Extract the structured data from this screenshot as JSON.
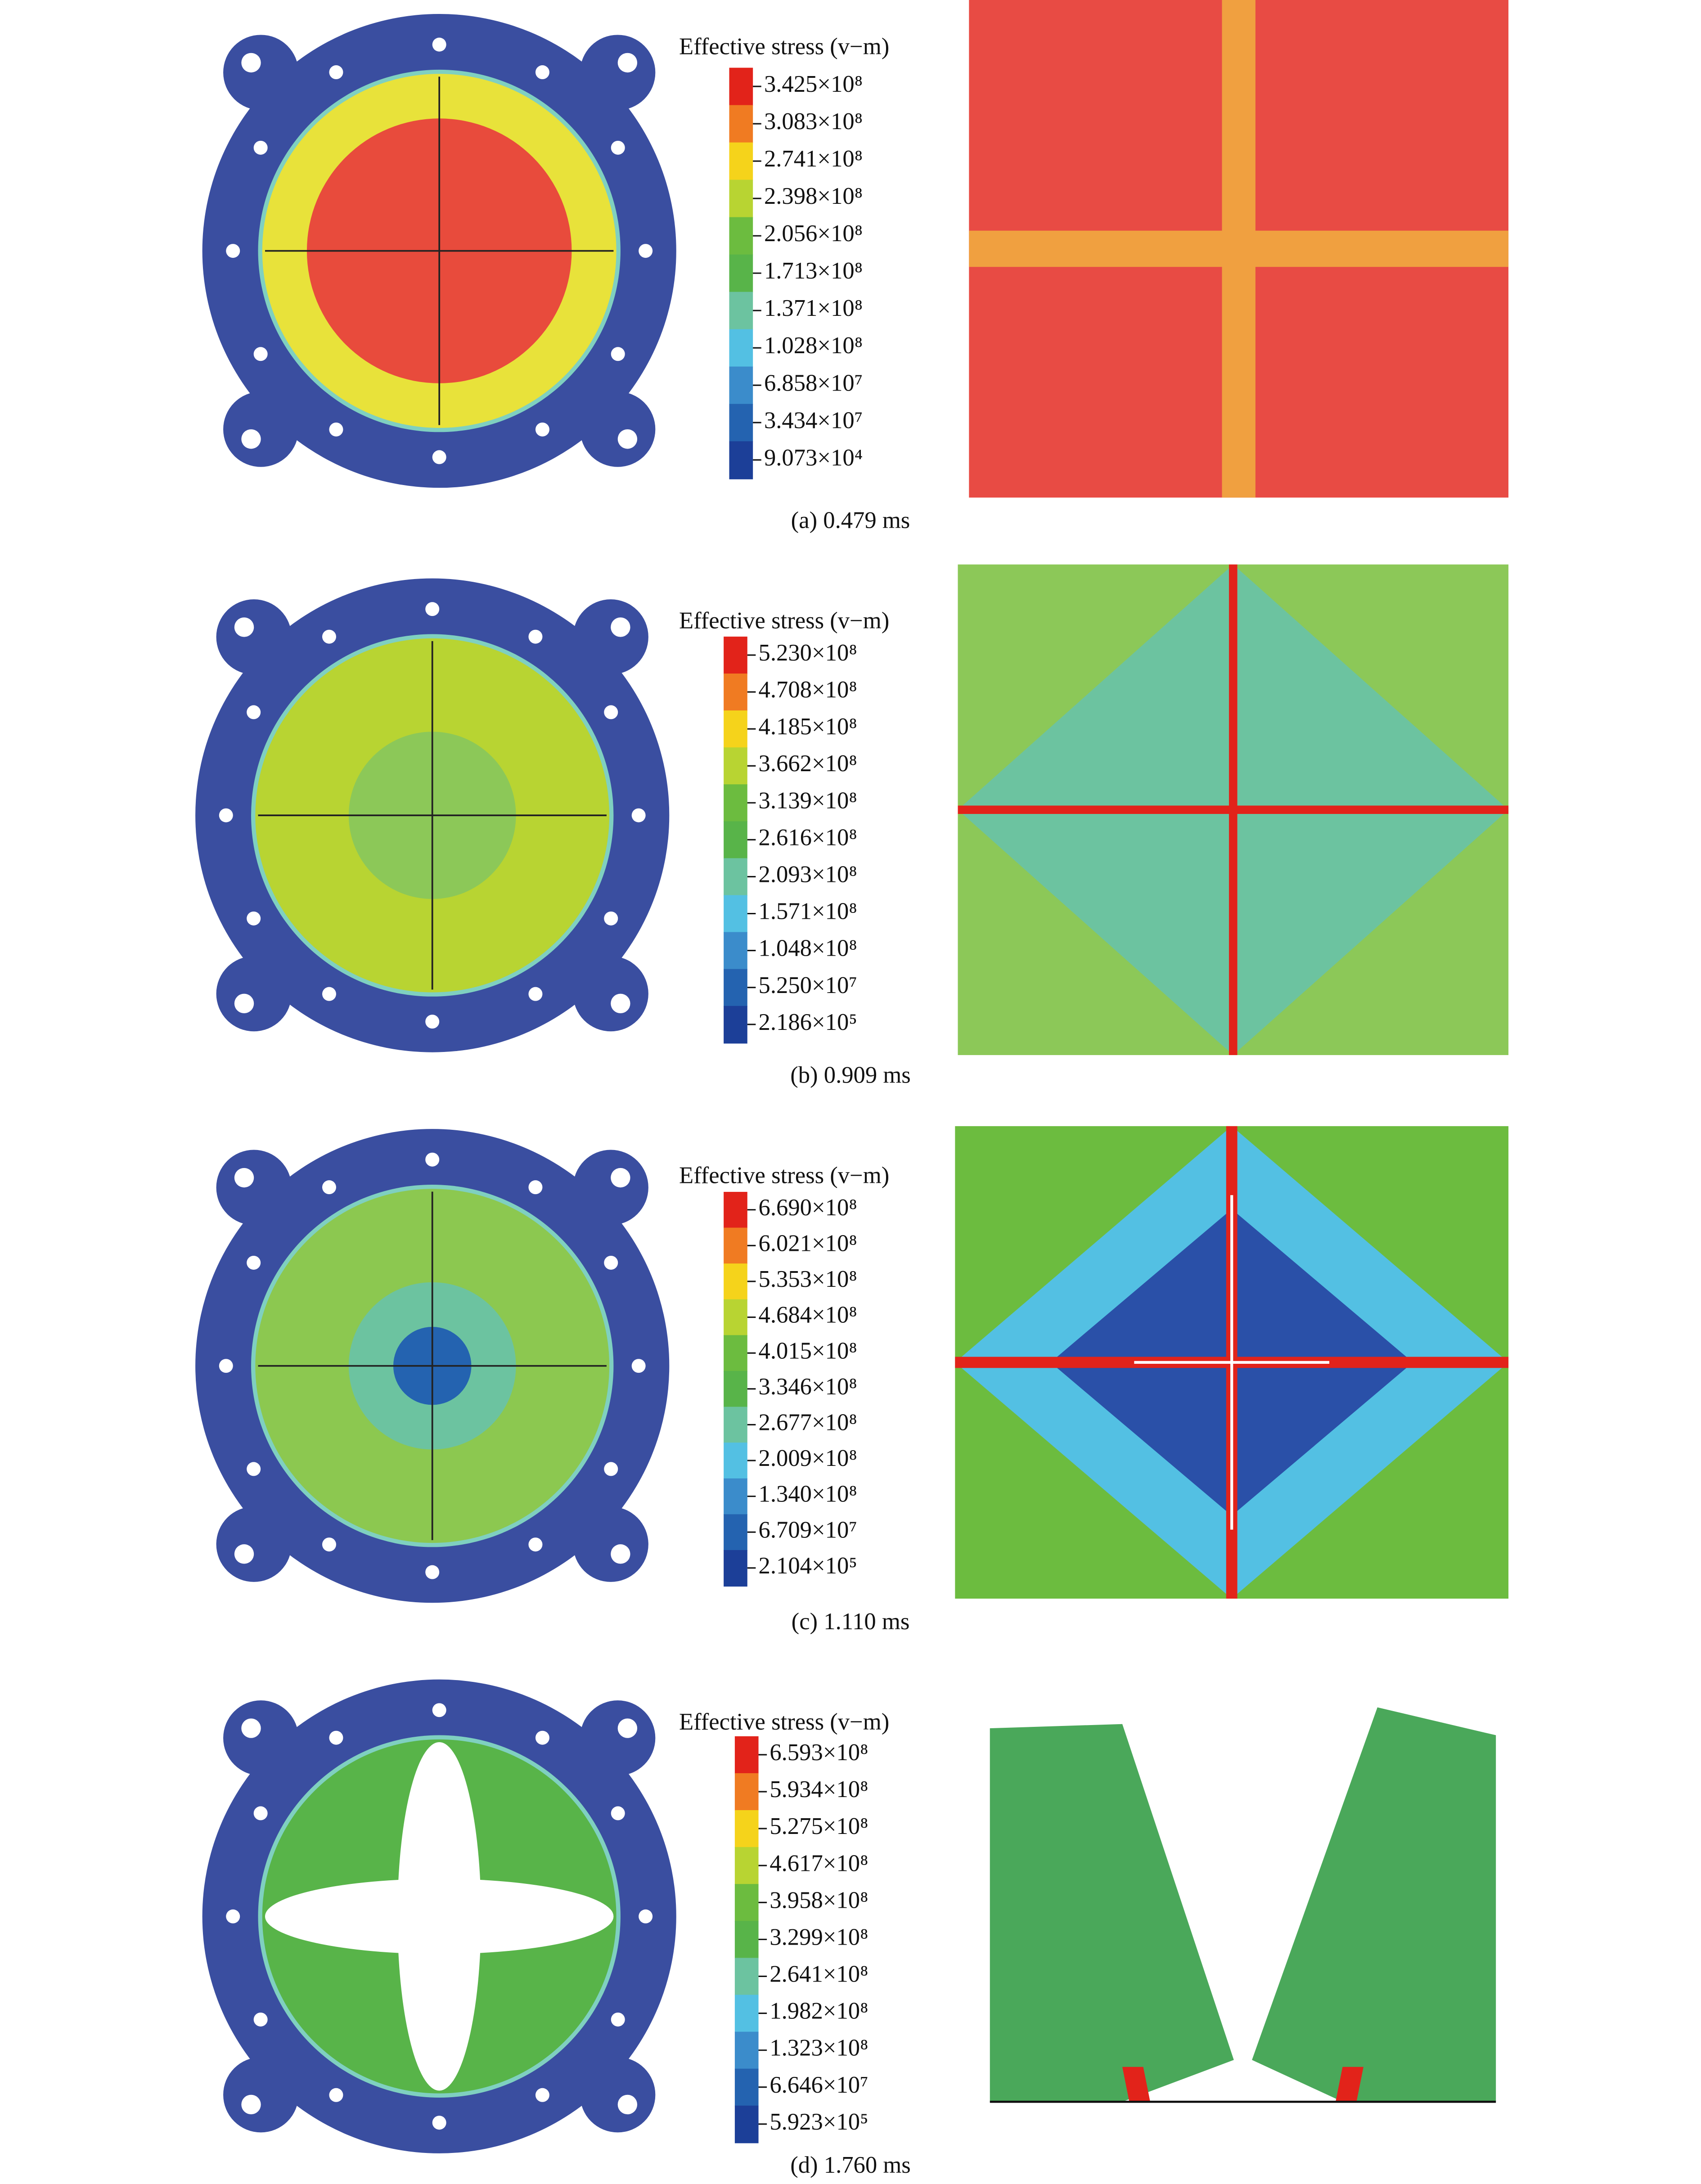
{
  "panels": [
    {
      "legend_title": "Effective stress (v−m)",
      "legend_labels": [
        "3.425×10⁸",
        "3.083×10⁸",
        "2.741×10⁸",
        "2.398×10⁸",
        "2.056×10⁸",
        "1.713×10⁸",
        "1.371×10⁸",
        "1.028×10⁸",
        "6.858×10⁷",
        "3.434×10⁷",
        "9.073×10⁴"
      ],
      "caption": "(a) 0.479 ms"
    },
    {
      "legend_title": "Effective stress (v−m)",
      "legend_labels": [
        "5.230×10⁸",
        "4.708×10⁸",
        "4.185×10⁸",
        "3.662×10⁸",
        "3.139×10⁸",
        "2.616×10⁸",
        "2.093×10⁸",
        "1.571×10⁸",
        "1.048×10⁸",
        "5.250×10⁷",
        "2.186×10⁵"
      ],
      "caption": "(b) 0.909 ms"
    },
    {
      "legend_title": "Effective stress (v−m)",
      "legend_labels": [
        "6.690×10⁸",
        "6.021×10⁸",
        "5.353×10⁸",
        "4.684×10⁸",
        "4.015×10⁸",
        "3.346×10⁸",
        "2.677×10⁸",
        "2.009×10⁸",
        "1.340×10⁸",
        "6.709×10⁷",
        "2.104×10⁵"
      ],
      "caption": "(c) 1.110 ms"
    },
    {
      "legend_title": "Effective stress (v−m)",
      "legend_labels": [
        "6.593×10⁸",
        "5.934×10⁸",
        "5.275×10⁸",
        "4.617×10⁸",
        "3.958×10⁸",
        "3.299×10⁸",
        "2.641×10⁸",
        "1.982×10⁸",
        "1.323×10⁸",
        "6.646×10⁷",
        "5.923×10⁵"
      ],
      "caption": "(d) 1.760 ms"
    }
  ],
  "colorbar_colors": [
    "#e2231a",
    "#f07b22",
    "#f5d31b",
    "#b8d432",
    "#6cbc3f",
    "#58b449",
    "#6cc3a0",
    "#53c0e3",
    "#3b8ccb",
    "#2463b0",
    "#1c3f98"
  ]
}
